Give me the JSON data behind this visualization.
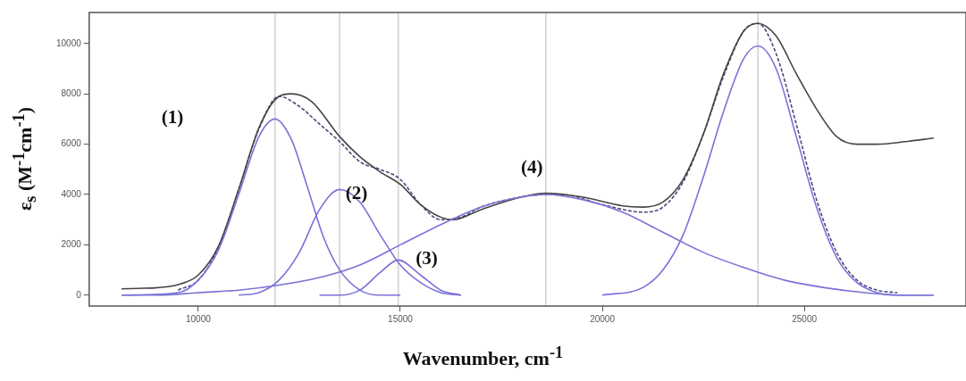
{
  "chart_data": {
    "type": "line",
    "xlabel": "Wavenumber, cm$^{-1}$",
    "ylabel": "ε$_{s}$ (M$^{-1}$cm$^{-1}$)",
    "xlim": [
      7300,
      29000
    ],
    "ylim": [
      -432,
      11232
    ],
    "xticks": [
      10000,
      15000,
      20000,
      25000
    ],
    "yticks": [
      0,
      2000,
      4000,
      6000,
      8000,
      10000
    ],
    "marker": "none",
    "ref_lines": [
      {
        "axis": "x",
        "value": 11900,
        "color": "#d0d0d0"
      },
      {
        "axis": "x",
        "value": 13500,
        "color": "#d0d0d0"
      },
      {
        "axis": "x",
        "value": 14950,
        "color": "#d0d0d0"
      },
      {
        "axis": "x",
        "value": 18600,
        "color": "#d0d0d0"
      },
      {
        "axis": "x",
        "value": 23850,
        "color": "#d0d0d0"
      }
    ],
    "annotations": [
      "(1)",
      "(2)",
      "(3)",
      "(4)"
    ],
    "series": [
      {
        "color": "#7a72d8",
        "x": [
          8100,
          9500,
          10000,
          10500,
          11000,
          11500,
          11900,
          12300,
          12700,
          13100,
          13500,
          14000,
          14500,
          15000
        ],
        "values": [
          0,
          100,
          600,
          1800,
          4000,
          6300,
          7000,
          6200,
          4300,
          2300,
          1000,
          200,
          0,
          0
        ]
      },
      {
        "color": "#7a72d8",
        "x": [
          11000,
          11500,
          12000,
          12500,
          13000,
          13500,
          14000,
          14500,
          15000,
          15500,
          16000,
          16500
        ],
        "values": [
          0,
          100,
          600,
          1700,
          3400,
          4200,
          3700,
          2400,
          1200,
          500,
          100,
          0
        ]
      },
      {
        "color": "#7a72d8",
        "x": [
          13000,
          13500,
          14000,
          14500,
          14950,
          15500,
          16000,
          16500
        ],
        "values": [
          0,
          0,
          200,
          900,
          1400,
          800,
          200,
          0
        ]
      },
      {
        "color": "#7a72d8",
        "x": [
          8100,
          9000,
          10000,
          11000,
          12000,
          13000,
          14000,
          15000,
          16000,
          17000,
          18000,
          18600,
          19500,
          20500,
          21500,
          22500,
          23500,
          24500,
          25500,
          26500,
          27500,
          28200
        ],
        "values": [
          0,
          0,
          100,
          200,
          400,
          700,
          1200,
          2000,
          2800,
          3500,
          3900,
          4000,
          3800,
          3300,
          2500,
          1700,
          1100,
          600,
          300,
          100,
          0,
          0
        ]
      },
      {
        "color": "#7a72d8",
        "x": [
          20000,
          21000,
          21500,
          22000,
          22500,
          23000,
          23500,
          23850,
          24300,
          24800,
          25300,
          25800,
          26300,
          26800,
          27300,
          28200
        ],
        "values": [
          0,
          300,
          1000,
          2400,
          4700,
          7300,
          9400,
          9900,
          9000,
          6300,
          3500,
          1500,
          500,
          100,
          0,
          0
        ]
      },
      {
        "color": "#444444",
        "x": [
          8100,
          8500,
          9000,
          9500,
          10000,
          10500,
          11000,
          11500,
          12000,
          12300,
          12800,
          13500,
          14000,
          14500,
          15000,
          15500,
          16000,
          16300,
          17000,
          18000,
          18600,
          19500,
          20500,
          21000,
          21500,
          22000,
          22500,
          23000,
          23500,
          23850,
          24300,
          24800,
          25300,
          25800,
          26300,
          26800,
          27500,
          28200
        ],
        "values": [
          250,
          270,
          300,
          420,
          800,
          1950,
          4200,
          6650,
          7900,
          8000,
          7700,
          6300,
          5500,
          4900,
          4400,
          3600,
          3100,
          3000,
          3400,
          3900,
          4050,
          3900,
          3550,
          3500,
          3700,
          4600,
          6400,
          8800,
          10500,
          10800,
          10300,
          8800,
          7400,
          6300,
          6000,
          6000,
          6100,
          6240
        ]
      },
      {
        "color": "#4a4a7a",
        "line_style": "dashed",
        "x": [
          9500,
          10000,
          10500,
          11000,
          11500,
          12000,
          12500,
          13000,
          13500,
          14000,
          14500,
          15000,
          15500,
          16000,
          16500,
          17000,
          18000,
          18600,
          19000,
          20000,
          21000,
          21500,
          22000,
          22500,
          23000,
          23500,
          23850,
          24300,
          24800,
          25300,
          25800,
          26300,
          26800,
          27300
        ],
        "values": [
          200,
          600,
          1900,
          4200,
          6600,
          7900,
          7500,
          6800,
          6100,
          5300,
          5000,
          4600,
          3600,
          3000,
          3100,
          3500,
          3900,
          4000,
          4000,
          3600,
          3300,
          3500,
          4500,
          6400,
          8700,
          10500,
          10800,
          9600,
          6800,
          3800,
          1700,
          600,
          200,
          100
        ]
      }
    ]
  }
}
